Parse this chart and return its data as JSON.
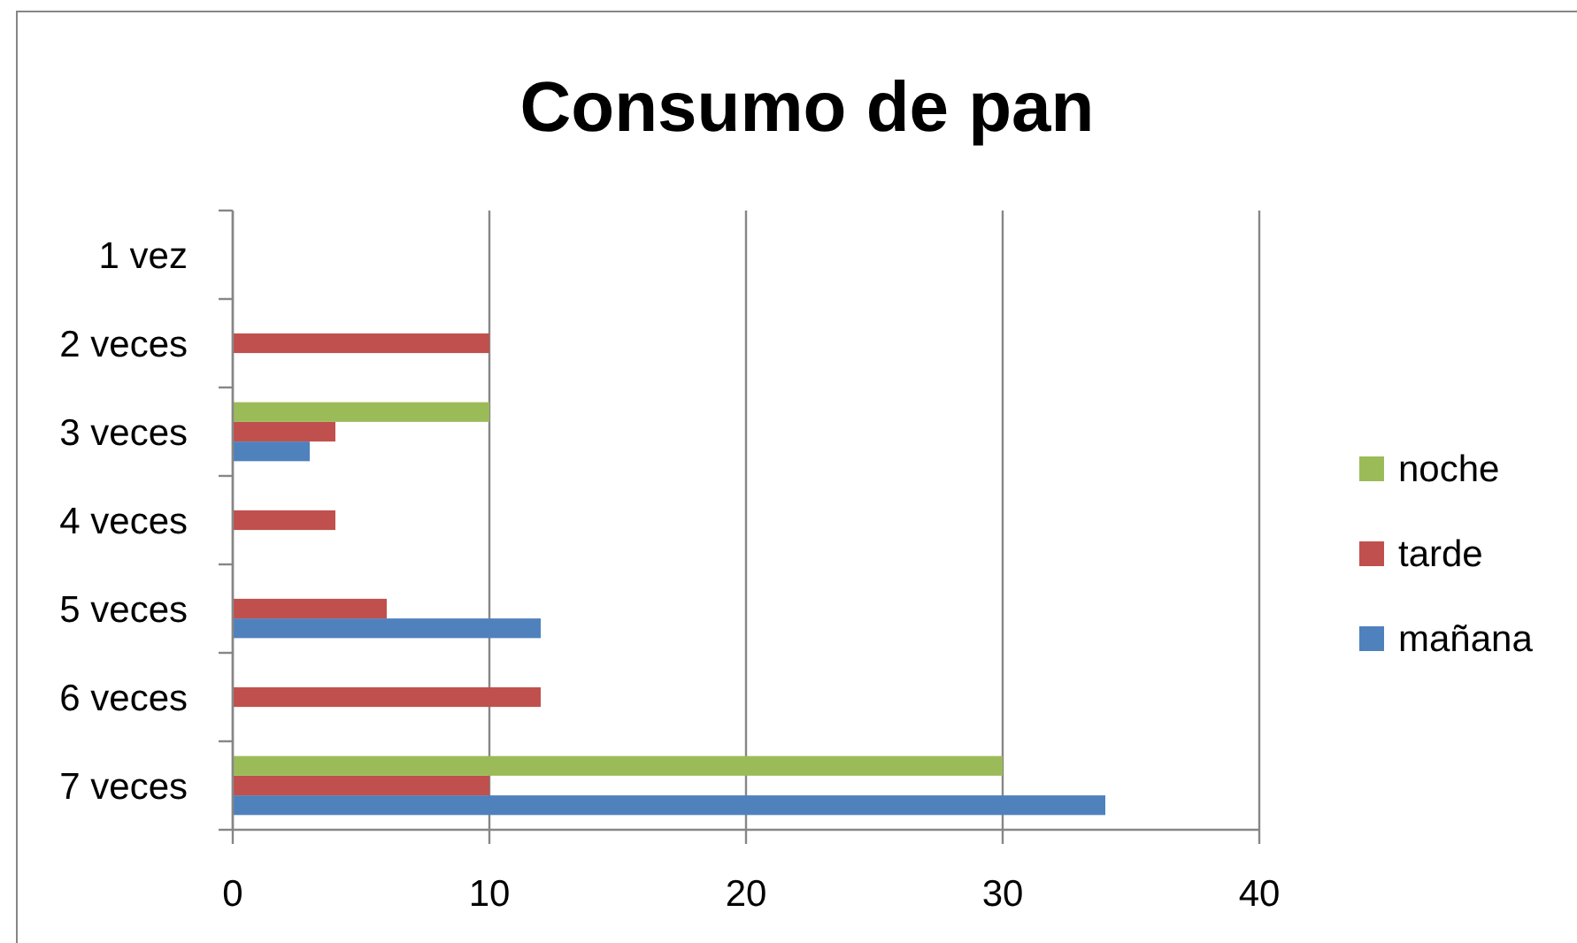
{
  "chart_data": {
    "type": "bar",
    "orientation": "horizontal",
    "title": "Consumo de pan",
    "categories": [
      "1 vez",
      "2 veces",
      "3 veces",
      "4 veces",
      "5 veces",
      "6 veces",
      "7 veces"
    ],
    "series": [
      {
        "name": "mañana",
        "color": "#4f81bd",
        "values": [
          null,
          null,
          3,
          null,
          12,
          null,
          34
        ]
      },
      {
        "name": "tarde",
        "color": "#c0504d",
        "values": [
          null,
          10,
          4,
          4,
          6,
          12,
          10
        ]
      },
      {
        "name": "noche",
        "color": "#9bbb59",
        "values": [
          null,
          null,
          10,
          null,
          null,
          null,
          30
        ]
      }
    ],
    "xlim": [
      0,
      40
    ],
    "xticks": [
      0,
      10,
      20,
      30,
      40
    ],
    "grid": "x",
    "legend": "right"
  }
}
